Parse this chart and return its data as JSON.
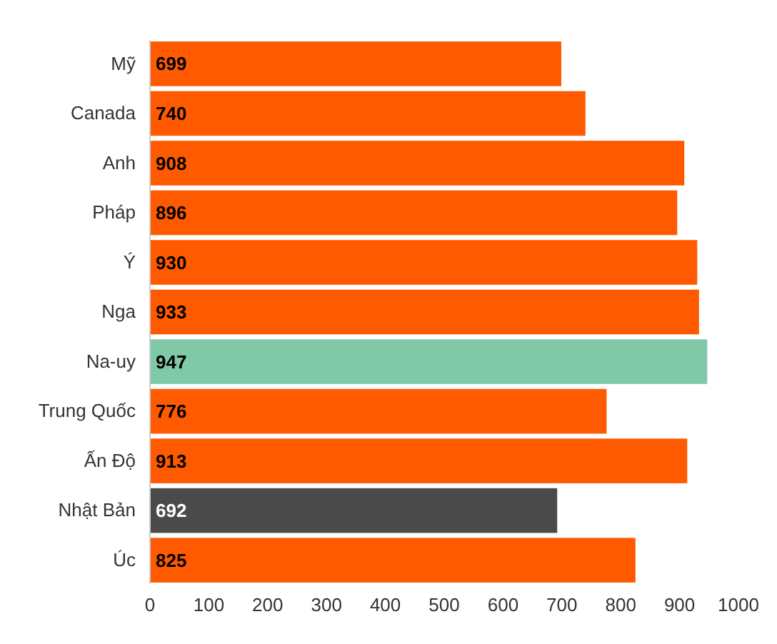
{
  "chart_data": {
    "type": "bar",
    "orientation": "horizontal",
    "categories": [
      "Mỹ",
      "Canada",
      "Anh",
      "Pháp",
      "Ý",
      "Nga",
      "Na-uy",
      "Trung Quốc",
      "Ấn Độ",
      "Nhật Bản",
      "Úc"
    ],
    "values": [
      699,
      740,
      908,
      896,
      930,
      933,
      947,
      776,
      913,
      692,
      825
    ],
    "colors": [
      "#ff5a00",
      "#ff5a00",
      "#ff5a00",
      "#ff5a00",
      "#ff5a00",
      "#ff5a00",
      "#80c9a8",
      "#ff5a00",
      "#ff5a00",
      "#4a4a4a",
      "#ff5a00"
    ],
    "xlim": [
      0,
      1000
    ],
    "xticks": [
      0,
      100,
      200,
      300,
      400,
      500,
      600,
      700,
      800,
      900,
      1000
    ],
    "data_labels": true
  }
}
